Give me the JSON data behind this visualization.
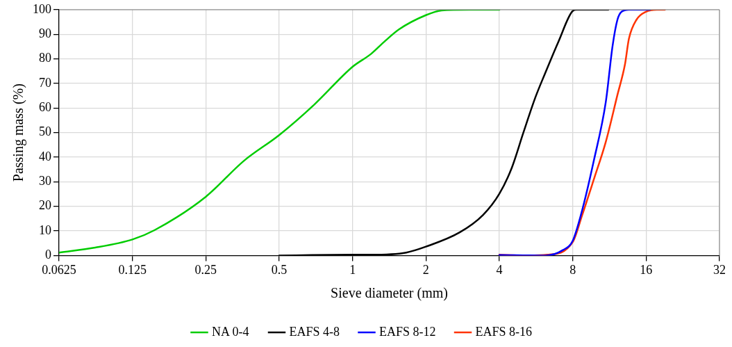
{
  "chart_data": {
    "type": "line",
    "xlabel": "Sieve diameter (mm)",
    "ylabel": "Passing mass (%)",
    "log": "x",
    "xlim": [
      0.0625,
      32
    ],
    "xticks": [
      0.0625,
      0.125,
      0.25,
      0.5,
      1,
      2,
      4,
      8,
      16,
      32
    ],
    "ylim": [
      0,
      100
    ],
    "yticks": [
      0,
      10,
      20,
      30,
      40,
      50,
      60,
      70,
      80,
      90,
      100
    ],
    "grid": true,
    "legend": "bottom",
    "marker": "none",
    "line_style": "solid",
    "series": [
      {
        "name": "NA 0-4",
        "color": "#00cc00",
        "x": [
          0.0625,
          0.088,
          0.125,
          0.154,
          0.25,
          0.358,
          0.5,
          0.698,
          1,
          1.19,
          1.36,
          1.55,
          2,
          2.32,
          3,
          4
        ],
        "values": [
          1.2,
          3.2,
          6.5,
          10.3,
          23.9,
          38.5,
          49,
          61.5,
          76.8,
          82,
          87.3,
          92,
          97.8,
          99.7,
          100,
          100
        ]
      },
      {
        "name": "EAFS 4-8",
        "color": "#000000",
        "x": [
          0.5,
          1,
          1.19,
          1.66,
          2,
          2.75,
          3.43,
          4,
          4.5,
          5.02,
          5.62,
          6.15,
          7.01,
          8,
          8.3,
          11.2
        ],
        "values": [
          0,
          0.3,
          0.3,
          1.2,
          3.6,
          9.4,
          16.5,
          25.1,
          35.7,
          50,
          64.3,
          73.9,
          87.3,
          99.5,
          100,
          100
        ]
      },
      {
        "name": "EAFS 8-12",
        "color": "#0000ff",
        "x": [
          4,
          6.2,
          7.29,
          8,
          8.75,
          9.76,
          10.93,
          11.66,
          12.2,
          12.7,
          13.6,
          16.6
        ],
        "values": [
          0.2,
          0,
          2.2,
          6,
          18.5,
          38.5,
          62.4,
          85.4,
          95.9,
          99.2,
          100,
          100
        ]
      },
      {
        "name": "EAFS 8-16",
        "color": "#ff3300",
        "x": [
          4,
          5.02,
          6.3,
          8,
          8.75,
          9.76,
          10.93,
          12.2,
          13.1,
          13.6,
          14.6,
          16,
          17.7,
          19.1
        ],
        "values": [
          0.3,
          0,
          0.3,
          5.5,
          16.5,
          30.9,
          46.2,
          65.3,
          77.7,
          88.2,
          95.9,
          99.2,
          100,
          100
        ]
      }
    ]
  }
}
